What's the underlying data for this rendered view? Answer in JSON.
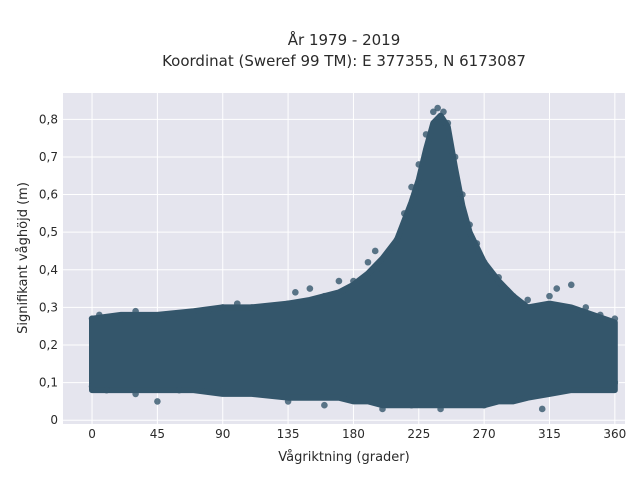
{
  "chart_data": {
    "type": "scatter",
    "title_lines": [
      "År 1979 - 2019",
      "Koordinat (Sweref 99 TM): E 377355, N 6173087"
    ],
    "xlabel": "Vågriktning (grader)",
    "ylabel": "Signifikant våghöjd (m)",
    "xlim": [
      -20,
      367
    ],
    "ylim": [
      -0.01,
      0.87
    ],
    "x_ticks": [
      0,
      45,
      90,
      135,
      180,
      225,
      270,
      315,
      360
    ],
    "x_tick_labels": [
      "0",
      "45",
      "90",
      "135",
      "180",
      "225",
      "270",
      "315",
      "360"
    ],
    "y_ticks": [
      0,
      0.1,
      0.2,
      0.3,
      0.4,
      0.5,
      0.6,
      0.7,
      0.8
    ],
    "y_tick_labels": [
      "0",
      "0,1",
      "0,2",
      "0,3",
      "0,4",
      "0,5",
      "0,6",
      "0,7",
      "0,8"
    ],
    "grid": true,
    "background_color": "#e5e5ee",
    "marker_color": "#34566b",
    "points": [
      [
        0,
        0.09
      ],
      [
        0,
        0.27
      ],
      [
        5,
        0.28
      ],
      [
        10,
        0.08
      ],
      [
        20,
        0.27
      ],
      [
        30,
        0.29
      ],
      [
        40,
        0.25
      ],
      [
        45,
        0.05
      ],
      [
        50,
        0.27
      ],
      [
        60,
        0.27
      ],
      [
        70,
        0.28
      ],
      [
        80,
        0.29
      ],
      [
        90,
        0.3
      ],
      [
        100,
        0.31
      ],
      [
        110,
        0.3
      ],
      [
        120,
        0.3
      ],
      [
        135,
        0.31
      ],
      [
        140,
        0.34
      ],
      [
        150,
        0.35
      ],
      [
        160,
        0.33
      ],
      [
        170,
        0.37
      ],
      [
        180,
        0.37
      ],
      [
        190,
        0.42
      ],
      [
        195,
        0.45
      ],
      [
        200,
        0.4
      ],
      [
        210,
        0.48
      ],
      [
        215,
        0.55
      ],
      [
        220,
        0.62
      ],
      [
        225,
        0.68
      ],
      [
        230,
        0.76
      ],
      [
        235,
        0.82
      ],
      [
        238,
        0.83
      ],
      [
        242,
        0.82
      ],
      [
        245,
        0.79
      ],
      [
        250,
        0.7
      ],
      [
        255,
        0.6
      ],
      [
        260,
        0.52
      ],
      [
        265,
        0.47
      ],
      [
        270,
        0.42
      ],
      [
        280,
        0.38
      ],
      [
        290,
        0.33
      ],
      [
        300,
        0.32
      ],
      [
        315,
        0.33
      ],
      [
        320,
        0.35
      ],
      [
        330,
        0.36
      ],
      [
        340,
        0.3
      ],
      [
        350,
        0.28
      ],
      [
        360,
        0.27
      ],
      [
        360,
        0.1
      ],
      [
        310,
        0.03
      ],
      [
        270,
        0.04
      ],
      [
        240,
        0.03
      ],
      [
        220,
        0.04
      ],
      [
        200,
        0.03
      ],
      [
        160,
        0.04
      ],
      [
        135,
        0.05
      ],
      [
        90,
        0.08
      ],
      [
        60,
        0.08
      ],
      [
        30,
        0.07
      ]
    ],
    "density_band": [
      [
        0,
        0.08,
        0.27
      ],
      [
        20,
        0.08,
        0.28
      ],
      [
        45,
        0.08,
        0.28
      ],
      [
        70,
        0.08,
        0.29
      ],
      [
        90,
        0.07,
        0.3
      ],
      [
        110,
        0.07,
        0.3
      ],
      [
        135,
        0.06,
        0.31
      ],
      [
        150,
        0.06,
        0.32
      ],
      [
        170,
        0.06,
        0.34
      ],
      [
        180,
        0.05,
        0.36
      ],
      [
        190,
        0.05,
        0.39
      ],
      [
        200,
        0.04,
        0.43
      ],
      [
        210,
        0.04,
        0.48
      ],
      [
        220,
        0.04,
        0.58
      ],
      [
        225,
        0.04,
        0.64
      ],
      [
        230,
        0.04,
        0.72
      ],
      [
        235,
        0.04,
        0.79
      ],
      [
        240,
        0.04,
        0.81
      ],
      [
        245,
        0.04,
        0.78
      ],
      [
        250,
        0.04,
        0.67
      ],
      [
        255,
        0.04,
        0.57
      ],
      [
        260,
        0.04,
        0.5
      ],
      [
        270,
        0.04,
        0.42
      ],
      [
        280,
        0.05,
        0.37
      ],
      [
        290,
        0.05,
        0.33
      ],
      [
        300,
        0.06,
        0.3
      ],
      [
        315,
        0.07,
        0.31
      ],
      [
        330,
        0.08,
        0.3
      ],
      [
        345,
        0.08,
        0.28
      ],
      [
        360,
        0.08,
        0.26
      ]
    ]
  }
}
